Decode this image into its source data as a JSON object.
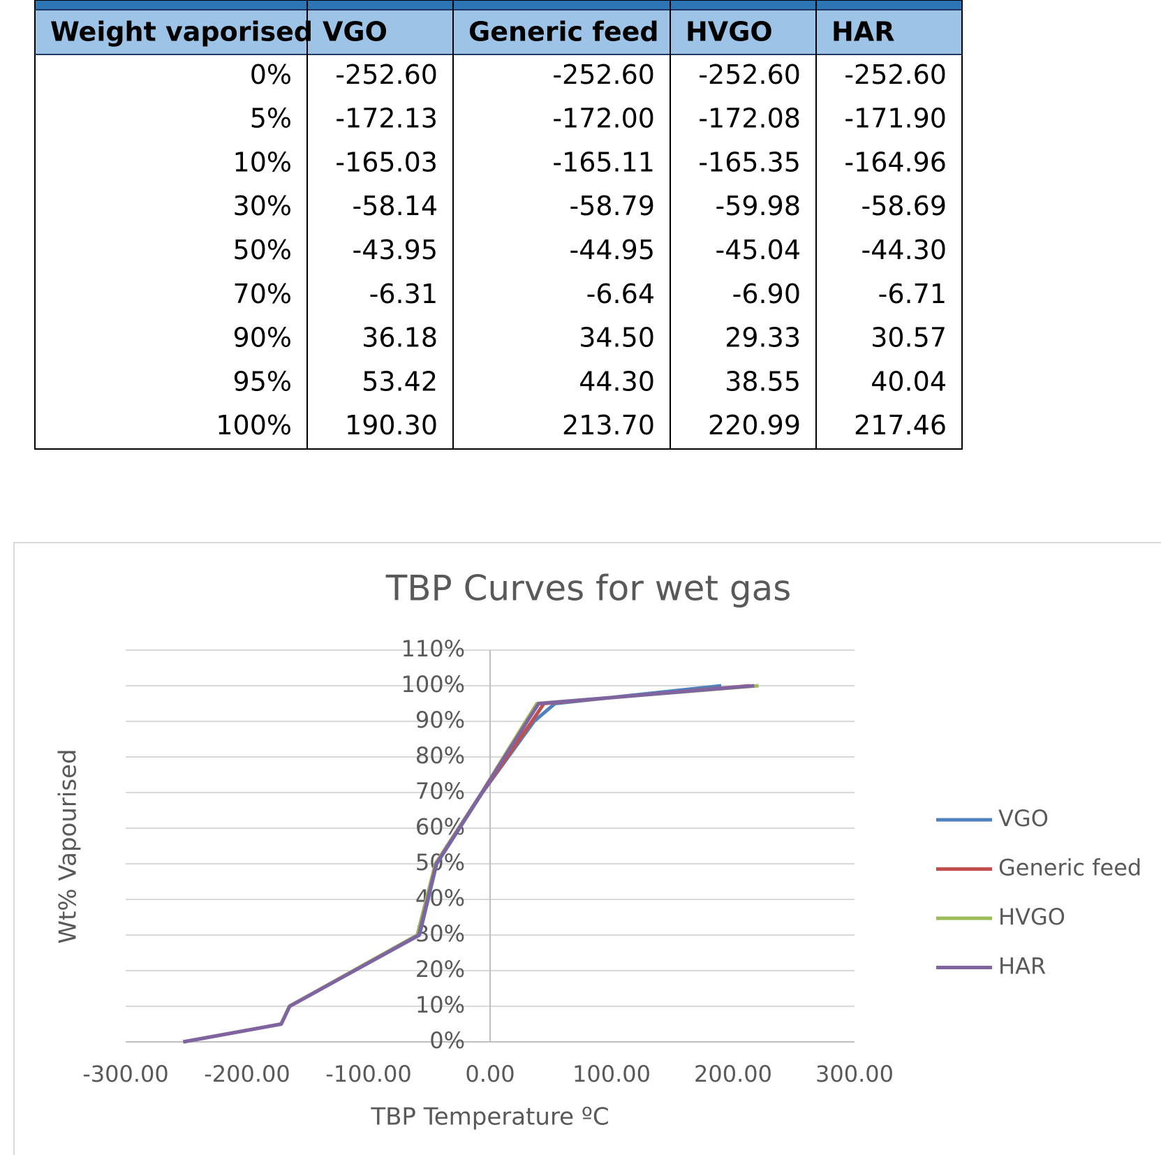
{
  "table": {
    "columns": [
      "Weight vaporised",
      "VGO",
      "Generic feed",
      "HVGO",
      "HAR"
    ],
    "rows": [
      [
        "0%",
        "-252.60",
        "-252.60",
        "-252.60",
        "-252.60"
      ],
      [
        "5%",
        "-172.13",
        "-172.00",
        "-172.08",
        "-171.90"
      ],
      [
        "10%",
        "-165.03",
        "-165.11",
        "-165.35",
        "-164.96"
      ],
      [
        "30%",
        "-58.14",
        "-58.79",
        "-59.98",
        "-58.69"
      ],
      [
        "50%",
        "-43.95",
        "-44.95",
        "-45.04",
        "-44.30"
      ],
      [
        "70%",
        "-6.31",
        "-6.64",
        "-6.90",
        "-6.71"
      ],
      [
        "90%",
        "36.18",
        "34.50",
        "29.33",
        "30.57"
      ],
      [
        "95%",
        "53.42",
        "44.30",
        "38.55",
        "40.04"
      ],
      [
        "100%",
        "190.30",
        "213.70",
        "220.99",
        "217.46"
      ]
    ]
  },
  "chart_data": {
    "type": "line",
    "title": "TBP Curves for wet gas",
    "x_label": "TBP Temperature ºC",
    "y_label": "Wt% Vapourised",
    "series": [
      {
        "name": "VGO",
        "color": "#4e81bd",
        "x": [
          -252.6,
          -172.13,
          -165.03,
          -58.14,
          -43.95,
          -6.31,
          36.18,
          53.42,
          190.3
        ],
        "values": [
          0,
          5,
          10,
          30,
          50,
          70,
          90,
          95,
          100
        ]
      },
      {
        "name": "Generic feed",
        "color": "#c0504d",
        "x": [
          -252.6,
          -172.0,
          -165.11,
          -58.79,
          -44.95,
          -6.64,
          34.5,
          44.3,
          213.7
        ],
        "values": [
          0,
          5,
          10,
          30,
          50,
          70,
          90,
          95,
          100
        ]
      },
      {
        "name": "HVGO",
        "color": "#9bbb59",
        "x": [
          -252.6,
          -172.08,
          -165.35,
          -59.98,
          -45.04,
          -6.9,
          29.33,
          38.55,
          220.99
        ],
        "values": [
          0,
          5,
          10,
          30,
          50,
          70,
          90,
          95,
          100
        ]
      },
      {
        "name": "HAR",
        "color": "#8064a2",
        "x": [
          -252.6,
          -171.9,
          -164.96,
          -58.69,
          -44.3,
          -6.71,
          30.57,
          40.04,
          217.46
        ],
        "values": [
          0,
          5,
          10,
          30,
          50,
          70,
          90,
          95,
          100
        ]
      }
    ],
    "xlim": [
      -300,
      300
    ],
    "xticks": [
      {
        "value": -300,
        "label": "-300.00"
      },
      {
        "value": -200,
        "label": "-200.00"
      },
      {
        "value": -100,
        "label": "-100.00"
      },
      {
        "value": 0,
        "label": "0.00"
      },
      {
        "value": 100,
        "label": "100.00"
      },
      {
        "value": 200,
        "label": "200.00"
      },
      {
        "value": 300,
        "label": "300.00"
      }
    ],
    "ylim": [
      0,
      110
    ],
    "yticks": [
      {
        "value": 0,
        "label": "0%"
      },
      {
        "value": 10,
        "label": "10%"
      },
      {
        "value": 20,
        "label": "20%"
      },
      {
        "value": 30,
        "label": "30%"
      },
      {
        "value": 40,
        "label": "40%"
      },
      {
        "value": 50,
        "label": "50%"
      },
      {
        "value": 60,
        "label": "60%"
      },
      {
        "value": 70,
        "label": "70%"
      },
      {
        "value": 80,
        "label": "80%"
      },
      {
        "value": 90,
        "label": "90%"
      },
      {
        "value": 100,
        "label": "100%"
      },
      {
        "value": 110,
        "label": "110%"
      }
    ],
    "grid": true,
    "legend": "right"
  }
}
